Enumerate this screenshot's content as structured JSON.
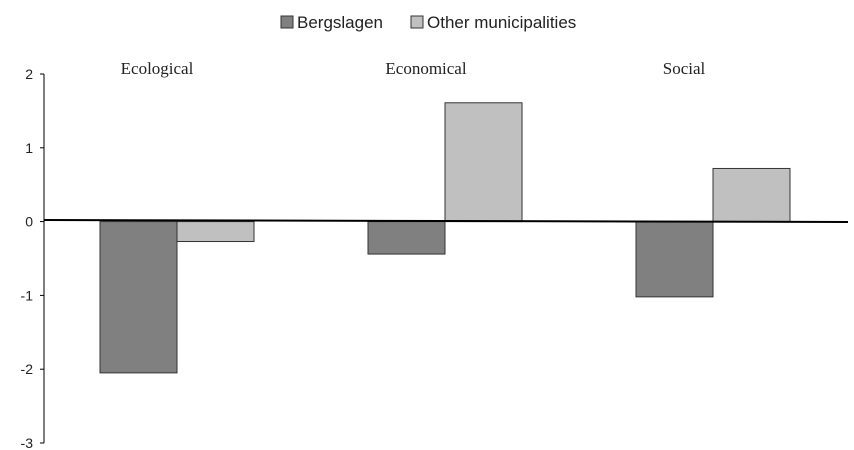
{
  "chart_data": {
    "type": "bar",
    "title": "",
    "xlabel": "",
    "ylabel": "",
    "categories": [
      "Ecological",
      "Economical",
      "Social"
    ],
    "series": [
      {
        "name": "Bergslagen",
        "values": [
          -2.05,
          -0.44,
          -1.02
        ]
      },
      {
        "name": "Other municipalities",
        "values": [
          -0.27,
          1.61,
          0.72
        ]
      }
    ],
    "ylim": [
      -3,
      2
    ],
    "yticks": [
      "2",
      "1",
      "0",
      "-1",
      "-2",
      "-3"
    ],
    "legend_position": "top-center",
    "category_label_position": "top",
    "grid": false,
    "colors": {
      "Bergslagen": "#808080",
      "Other municipalities": "#c0c0c0",
      "axis": "#000000",
      "bar_border": "#333333"
    }
  }
}
